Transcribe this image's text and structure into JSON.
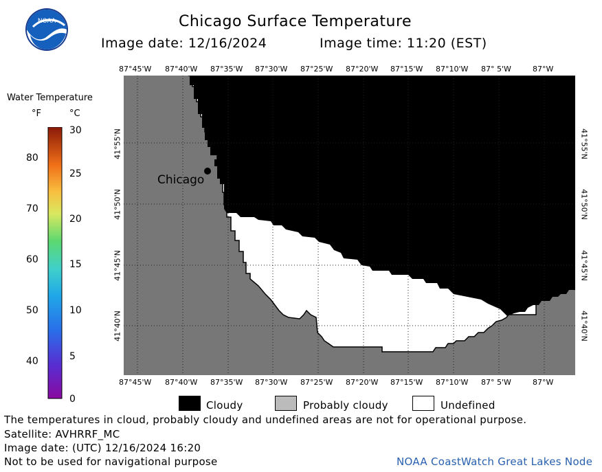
{
  "header": {
    "title": "Chicago Surface Temperature",
    "image_date": "Image date: 12/16/2024",
    "image_time": "Image time: 11:20 (EST)"
  },
  "logo": {
    "text": "NOAA"
  },
  "colorbar": {
    "title": "Water Temperature",
    "unit_f": "°F",
    "unit_c": "°C",
    "f_labels": [
      "80",
      "70",
      "60",
      "50",
      "40"
    ],
    "c_labels": [
      "30",
      "25",
      "20",
      "15",
      "10",
      "5",
      "0"
    ],
    "c_min": 0,
    "c_max": 30
  },
  "map": {
    "lon_labels": [
      "87°45'W",
      "87°40'W",
      "87°35'W",
      "87°30'W",
      "87°25'W",
      "87°20'W",
      "87°15'W",
      "87°10'W",
      "87° 5'W",
      "87°W"
    ],
    "lat_labels": [
      "41°55'N",
      "41°50'N",
      "41°45'N",
      "41°40'N"
    ],
    "city_label": "Chicago",
    "colors": {
      "land": "#777777",
      "cloudy": "#000000",
      "undefined": "#ffffff",
      "probably_cloudy": "#bbbbbb"
    }
  },
  "legend": {
    "cloudy": "Cloudy",
    "probably_cloudy": "Probably cloudy",
    "undefined": "Undefined"
  },
  "footer": {
    "note": "The temperatures in cloud, probably cloudy and undefined areas are not for operational purpose.",
    "satellite": "Satellite: AVHRRF_MC",
    "utc_date": "Image date: (UTC) 12/16/2024  16:20",
    "nav_warning": "Not to be used for navigational purpose",
    "credit": "NOAA CoastWatch Great Lakes Node"
  }
}
